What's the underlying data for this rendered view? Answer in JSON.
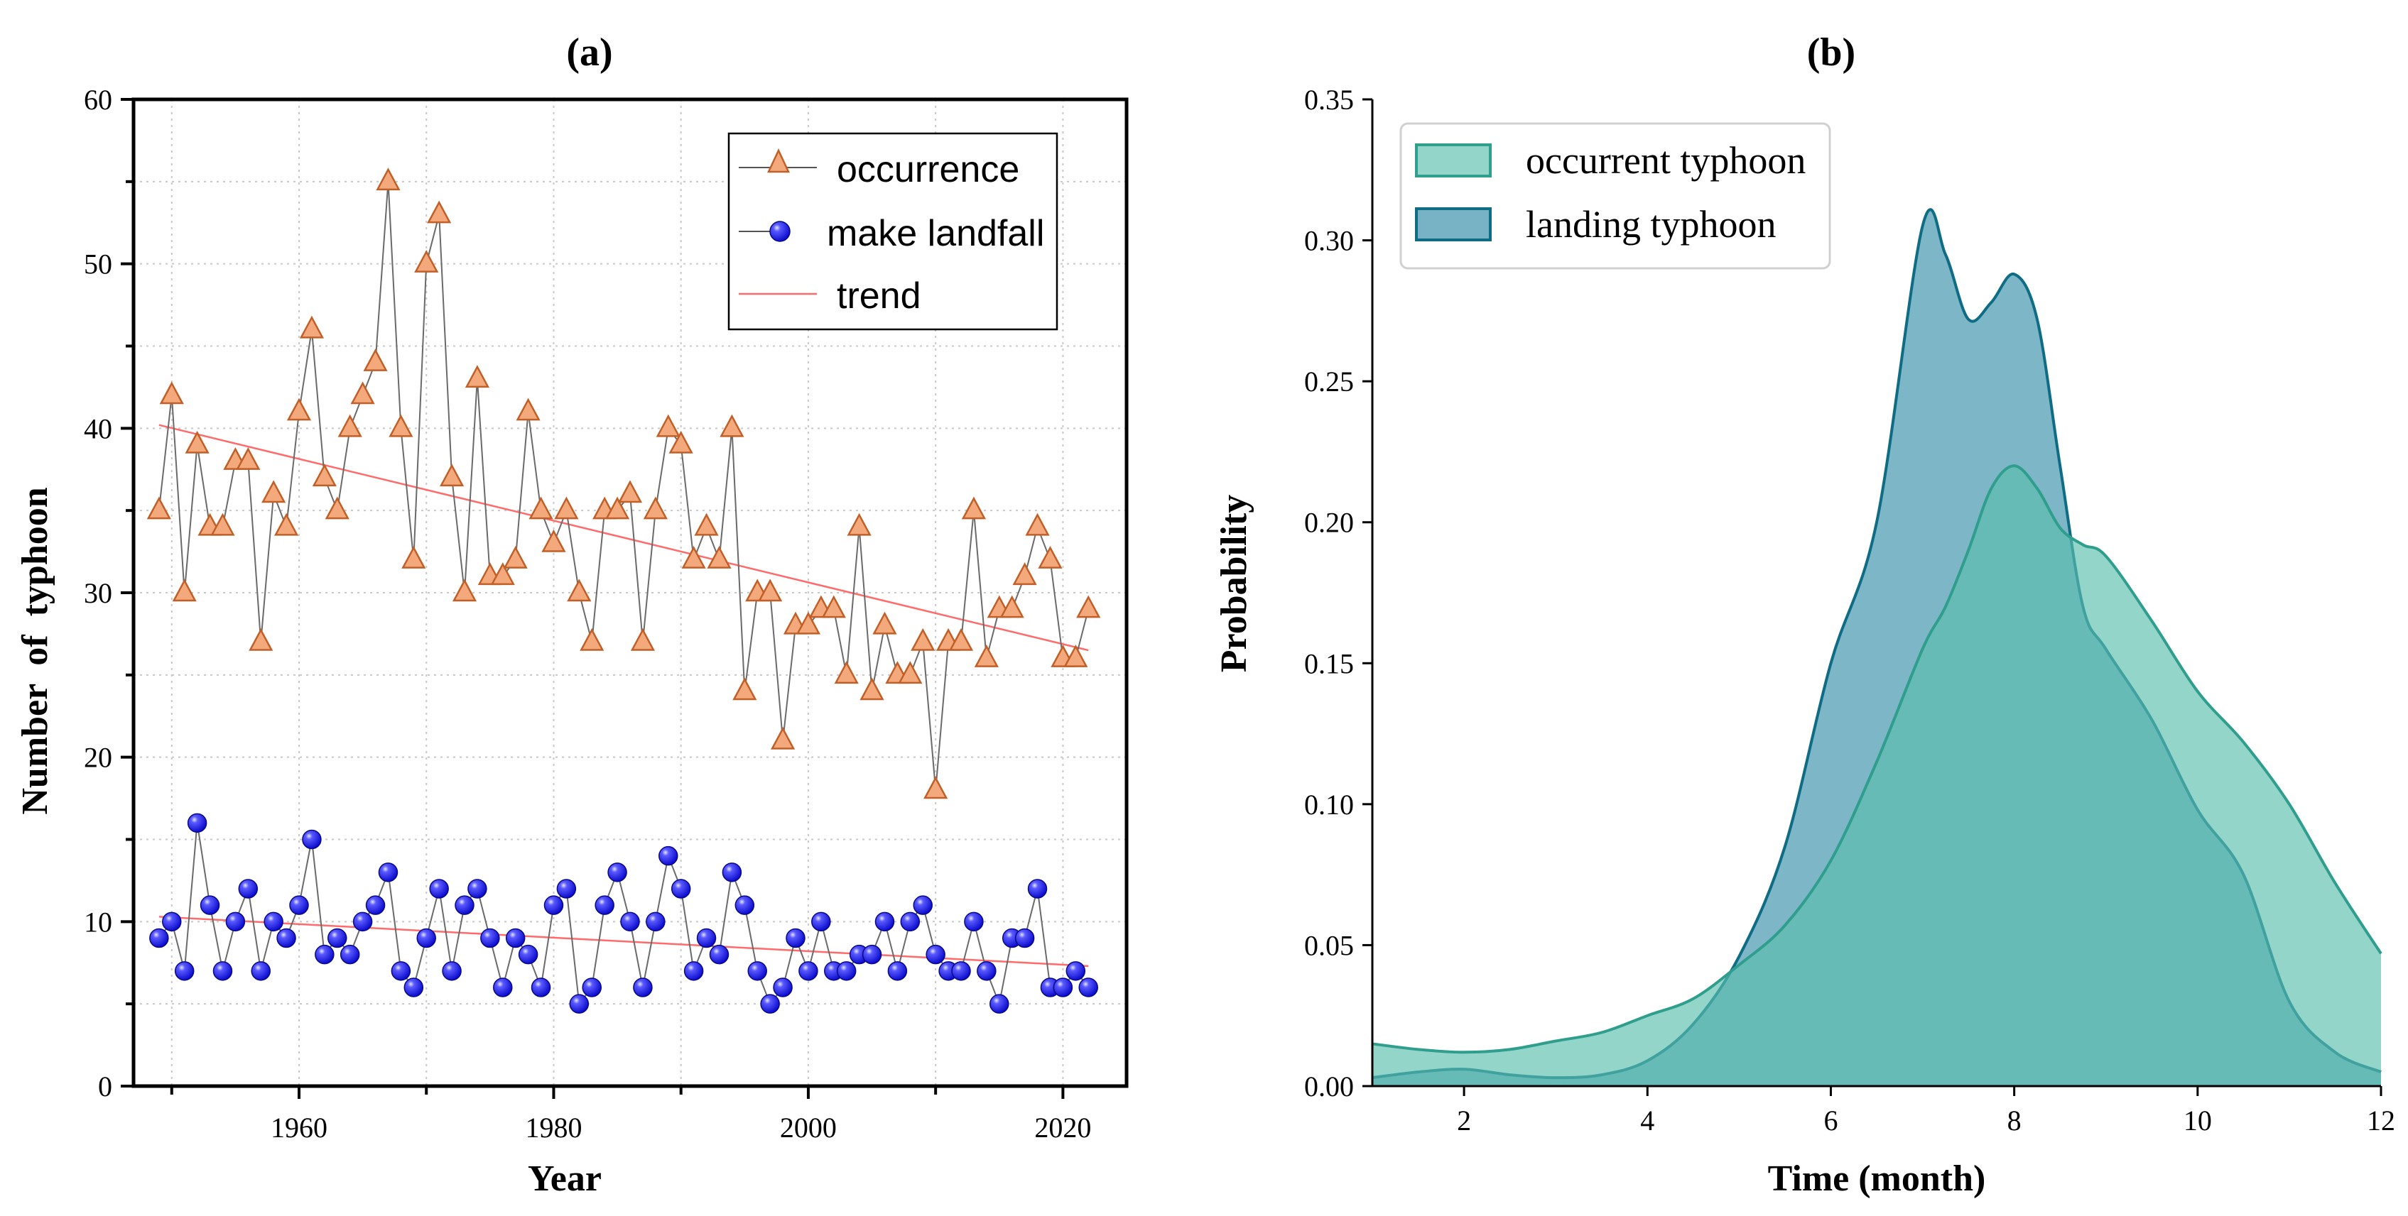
{
  "chart_data": [
    {
      "panel_label": "(a)",
      "type": "line",
      "xlabel": "Year",
      "ylabel": "Number  of  typhoon",
      "xlim": [
        1947,
        2025
      ],
      "ylim": [
        0,
        60
      ],
      "xticks": [
        1960,
        1980,
        2000,
        2020
      ],
      "yticks": [
        0,
        10,
        20,
        30,
        40,
        50,
        60
      ],
      "grid": true,
      "legend_position": "top-right",
      "x": [
        1949,
        1950,
        1951,
        1952,
        1953,
        1954,
        1955,
        1956,
        1957,
        1958,
        1959,
        1960,
        1961,
        1962,
        1963,
        1964,
        1965,
        1966,
        1967,
        1968,
        1969,
        1970,
        1971,
        1972,
        1973,
        1974,
        1975,
        1976,
        1977,
        1978,
        1979,
        1980,
        1981,
        1982,
        1983,
        1984,
        1985,
        1986,
        1987,
        1988,
        1989,
        1990,
        1991,
        1992,
        1993,
        1994,
        1995,
        1996,
        1997,
        1998,
        1999,
        2000,
        2001,
        2002,
        2003,
        2004,
        2005,
        2006,
        2007,
        2008,
        2009,
        2010,
        2011,
        2012,
        2013,
        2014,
        2015,
        2016,
        2017,
        2018,
        2019,
        2020,
        2021,
        2022
      ],
      "series": [
        {
          "name": "occurrence",
          "marker": "triangle",
          "color": "#F4A97C",
          "values": [
            35,
            42,
            30,
            39,
            34,
            34,
            38,
            38,
            27,
            36,
            34,
            41,
            46,
            37,
            35,
            40,
            42,
            44,
            55,
            40,
            32,
            50,
            53,
            37,
            30,
            43,
            31,
            31,
            32,
            41,
            35,
            33,
            35,
            30,
            27,
            35,
            35,
            36,
            27,
            35,
            40,
            39,
            32,
            34,
            32,
            40,
            24,
            30,
            30,
            21,
            28,
            28,
            29,
            29,
            25,
            34,
            24,
            28,
            25,
            25,
            27,
            18,
            27,
            27,
            35,
            26,
            29,
            29,
            31,
            34,
            32,
            26,
            26,
            29
          ]
        },
        {
          "name": "make landfall",
          "marker": "circle",
          "color": "#1B1BF0",
          "values": [
            9,
            10,
            7,
            16,
            11,
            7,
            10,
            12,
            7,
            10,
            9,
            11,
            15,
            8,
            9,
            8,
            10,
            11,
            13,
            7,
            6,
            9,
            12,
            7,
            11,
            12,
            9,
            6,
            9,
            8,
            6,
            11,
            12,
            5,
            6,
            11,
            13,
            10,
            6,
            10,
            14,
            12,
            7,
            9,
            8,
            13,
            11,
            7,
            5,
            6,
            9,
            7,
            10,
            7,
            7,
            8,
            8,
            10,
            7,
            10,
            11,
            8,
            7,
            7,
            10,
            7,
            5,
            9,
            9,
            12,
            6,
            6,
            7,
            6
          ]
        },
        {
          "name": "trend",
          "color": "#FF6B6B",
          "segments": [
            {
              "x": [
                1949,
                2022
              ],
              "y": [
                40.2,
                26.5
              ]
            },
            {
              "x": [
                1949,
                2022
              ],
              "y": [
                10.3,
                7.3
              ]
            }
          ]
        }
      ]
    },
    {
      "panel_label": "(b)",
      "type": "area",
      "xlabel": "Time (month)",
      "ylabel": "Probability",
      "xlim": [
        1,
        12
      ],
      "ylim": [
        0,
        0.35
      ],
      "xticks": [
        2,
        4,
        6,
        8,
        10,
        12
      ],
      "yticks": [
        0.0,
        0.05,
        0.1,
        0.15,
        0.2,
        0.25,
        0.3,
        0.35
      ],
      "ytick_labels": [
        "0.00",
        "0.05",
        "0.10",
        "0.15",
        "0.20",
        "0.25",
        "0.30",
        "0.35"
      ],
      "legend_position": "top-left",
      "x": [
        1,
        1.5,
        2,
        2.5,
        3,
        3.5,
        4,
        4.5,
        5,
        5.5,
        6,
        6.5,
        7,
        7.25,
        7.5,
        7.75,
        8,
        8.25,
        8.5,
        8.75,
        9,
        9.5,
        10,
        10.5,
        11,
        11.5,
        12
      ],
      "series": [
        {
          "name": "occurrent typhoon",
          "color": "#5BBFAE",
          "values": [
            0.015,
            0.013,
            0.012,
            0.013,
            0.016,
            0.019,
            0.025,
            0.031,
            0.043,
            0.057,
            0.08,
            0.115,
            0.155,
            0.17,
            0.19,
            0.212,
            0.22,
            0.212,
            0.198,
            0.192,
            0.188,
            0.165,
            0.14,
            0.122,
            0.1,
            0.072,
            0.047
          ]
        },
        {
          "name": "landing typhoon",
          "color": "#3E93AC",
          "values": [
            0.003,
            0.005,
            0.006,
            0.004,
            0.003,
            0.004,
            0.009,
            0.022,
            0.046,
            0.085,
            0.15,
            0.2,
            0.305,
            0.295,
            0.272,
            0.278,
            0.288,
            0.272,
            0.22,
            0.17,
            0.155,
            0.13,
            0.098,
            0.075,
            0.03,
            0.012,
            0.005
          ]
        }
      ]
    }
  ]
}
